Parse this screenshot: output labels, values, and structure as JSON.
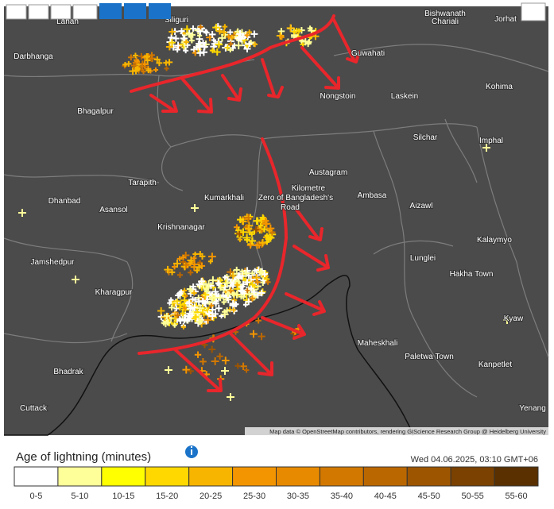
{
  "map": {
    "labels": [
      {
        "text": "Lahan"
      },
      {
        "text": "Siliguri"
      },
      {
        "text": "Darbhanga"
      },
      {
        "text": "Bhagalpur"
      },
      {
        "text": "Tarapith"
      },
      {
        "text": "Dhanbad"
      },
      {
        "text": "Asansol"
      },
      {
        "text": "Kumarkhali"
      },
      {
        "text": "Krishnanagar"
      },
      {
        "text": "Jamshedpur"
      },
      {
        "text": "Kharagpur"
      },
      {
        "text": "Bhadrak"
      },
      {
        "text": "Cuttack"
      },
      {
        "text": "Bishwanath"
      },
      {
        "text": "Chariali"
      },
      {
        "text": "Jorhat"
      },
      {
        "text": "Guwahati"
      },
      {
        "text": "Nongstoin"
      },
      {
        "text": "Laskein"
      },
      {
        "text": "Kohima"
      },
      {
        "text": "Silchar"
      },
      {
        "text": "Imphal"
      },
      {
        "text": "Austagram"
      },
      {
        "text": "Ambasa"
      },
      {
        "text": "Aizawl"
      },
      {
        "text": "Kalaymyo"
      },
      {
        "text": "Lunglei"
      },
      {
        "text": "Hakha Town"
      },
      {
        "text": "Maheskhali"
      },
      {
        "text": "Paletwa Town"
      },
      {
        "text": "Kanpetlet"
      },
      {
        "text": "Kyaw"
      },
      {
        "text": "Yenang"
      },
      {
        "text": "Kilometre"
      },
      {
        "text": "Zero of Bangladesh's"
      },
      {
        "text": "Road"
      }
    ],
    "attribution": "Map data © OpenStreetMap contributors, rendering GIScience Research Group @ Heidelberg University"
  },
  "legend": {
    "title": "Age of lightning (minutes)",
    "timestamp": "Wed 04.06.2025, 03:10 GMT+06",
    "bins": [
      {
        "label": "0-5",
        "color": "#ffffff"
      },
      {
        "label": "5-10",
        "color": "#ffff99"
      },
      {
        "label": "10-15",
        "color": "#ffff00"
      },
      {
        "label": "15-20",
        "color": "#ffd800"
      },
      {
        "label": "20-25",
        "color": "#f7b500"
      },
      {
        "label": "25-30",
        "color": "#f39500"
      },
      {
        "label": "30-35",
        "color": "#e88a00"
      },
      {
        "label": "35-40",
        "color": "#d27800"
      },
      {
        "label": "40-45",
        "color": "#bb6700"
      },
      {
        "label": "45-50",
        "color": "#9e5500"
      },
      {
        "label": "50-55",
        "color": "#7a4100"
      },
      {
        "label": "55-60",
        "color": "#5a3000"
      }
    ]
  }
}
